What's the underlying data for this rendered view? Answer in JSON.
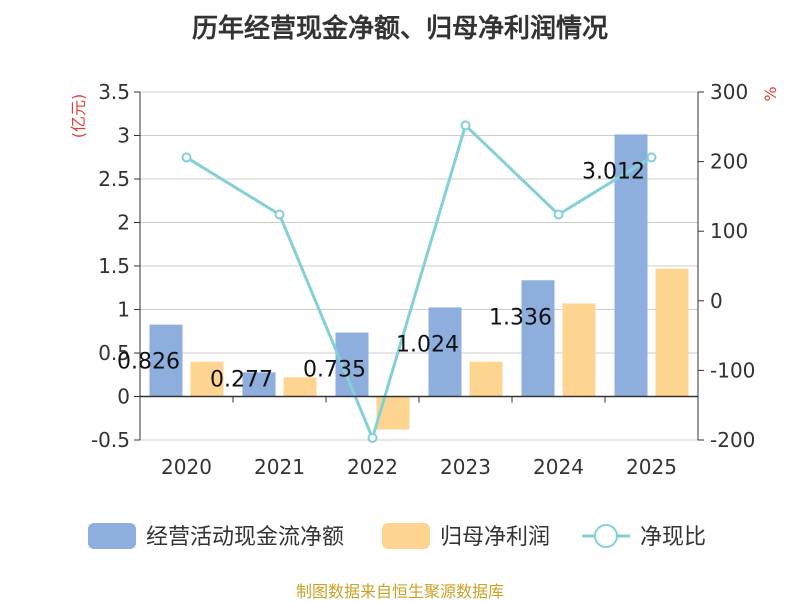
{
  "chart_data": {
    "type": "bar",
    "title": "历年经营现金净额、归母净利润情况",
    "categories": [
      "2020",
      "2021",
      "2022",
      "2023",
      "2024",
      "2025"
    ],
    "y_left": {
      "unit_label": "(亿元)",
      "range": [
        -0.5,
        3.5
      ],
      "ticks": [
        "3.5",
        "3",
        "2.5",
        "2",
        "1.5",
        "1",
        "0.5",
        "0",
        "-0.5"
      ],
      "tick_values": [
        3.5,
        3,
        2.5,
        2,
        1.5,
        1,
        0.5,
        0,
        -0.5
      ]
    },
    "y_right": {
      "unit_label": "%",
      "range": [
        -200,
        300
      ],
      "ticks": [
        "300",
        "200",
        "100",
        "0",
        "-100",
        "-200"
      ],
      "tick_values": [
        300,
        200,
        100,
        0,
        -100,
        -200
      ]
    },
    "series": [
      {
        "name": "经营活动现金流净额",
        "type": "bar",
        "axis": "left",
        "color": "#8eaedd",
        "values": [
          0.826,
          0.277,
          0.735,
          1.024,
          1.336,
          3.012
        ],
        "labels": [
          "0.826",
          "0.277",
          "0.735",
          "1.024",
          "1.336",
          "3.012"
        ]
      },
      {
        "name": "归母净利润",
        "type": "bar",
        "axis": "left",
        "color": "#fdd590",
        "values": [
          0.4,
          0.22,
          -0.38,
          0.4,
          1.07,
          1.47
        ]
      },
      {
        "name": "净现比",
        "type": "line",
        "axis": "right",
        "color": "#84d0d6",
        "values": [
          206,
          124,
          -197,
          252,
          124,
          206
        ]
      }
    ],
    "grid": true,
    "legend_position": "bottom"
  },
  "footer": "制图数据来自恒生聚源数据库"
}
